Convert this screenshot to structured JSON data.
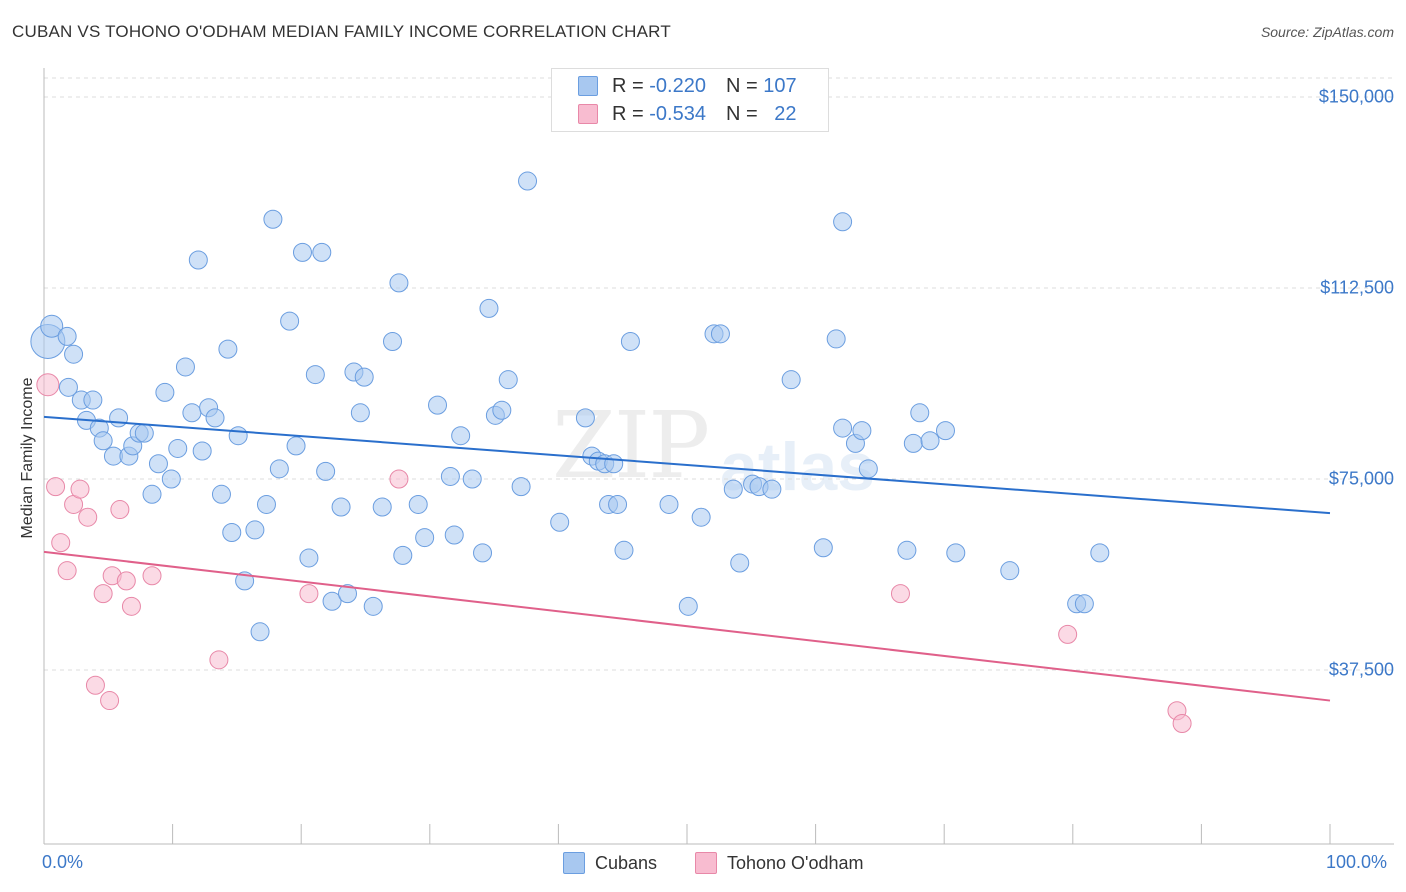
{
  "chart_data": {
    "type": "scatter",
    "title": "CUBAN VS TOHONO O'ODHAM MEDIAN FAMILY INCOME CORRELATION CHART",
    "source": "Source: ZipAtlas.com",
    "xlabel": "",
    "ylabel": "Median Family Income",
    "xlim": [
      0,
      100
    ],
    "ylim": [
      0,
      155000
    ],
    "x_tick_labels": [
      "0.0%",
      "100.0%"
    ],
    "y_ticks": [
      37500,
      75000,
      112500,
      150000
    ],
    "y_tick_labels": [
      "$37,500",
      "$75,000",
      "$112,500",
      "$150,000"
    ],
    "grid": true,
    "watermark": [
      "ZIP",
      "atlas"
    ],
    "legend": [
      {
        "r_label": "R = ",
        "r_value": "-0.220",
        "n_label": "N = ",
        "n_value": "107",
        "color": "#a8c8f0",
        "stroke": "#6b9ee0"
      },
      {
        "r_label": "R = ",
        "r_value": "-0.534",
        "n_label": "N = ",
        "n_value": "22",
        "color": "#f8bcd0",
        "stroke": "#e888a8"
      }
    ],
    "series": [
      {
        "name": "Cubans",
        "color": "#a8c8f0",
        "stroke": "#6b9ee0",
        "trend_color": "#2a6fcc",
        "trend": {
          "x": [
            0,
            100
          ],
          "y": [
            87200,
            68300
          ]
        },
        "points": [
          [
            0.3,
            102000
          ],
          [
            0.6,
            105000
          ],
          [
            1.8,
            103000
          ],
          [
            2.3,
            99500
          ],
          [
            1.9,
            93000
          ],
          [
            2.9,
            90500
          ],
          [
            3.8,
            90500
          ],
          [
            3.3,
            86500
          ],
          [
            4.3,
            85000
          ],
          [
            5.8,
            87000
          ],
          [
            4.6,
            82500
          ],
          [
            5.4,
            79500
          ],
          [
            6.6,
            79500
          ],
          [
            6.9,
            81500
          ],
          [
            7.4,
            84000
          ],
          [
            7.8,
            84000
          ],
          [
            8.4,
            72000
          ],
          [
            8.9,
            78000
          ],
          [
            9.4,
            92000
          ],
          [
            9.9,
            75000
          ],
          [
            10.4,
            81000
          ],
          [
            11.0,
            97000
          ],
          [
            11.5,
            88000
          ],
          [
            12.0,
            118000
          ],
          [
            12.3,
            80500
          ],
          [
            12.8,
            89000
          ],
          [
            13.3,
            87000
          ],
          [
            13.8,
            72000
          ],
          [
            14.3,
            100500
          ],
          [
            14.6,
            64500
          ],
          [
            15.1,
            83500
          ],
          [
            15.6,
            55000
          ],
          [
            16.4,
            65000
          ],
          [
            16.8,
            45000
          ],
          [
            17.3,
            70000
          ],
          [
            17.8,
            126000
          ],
          [
            18.3,
            77000
          ],
          [
            19.1,
            106000
          ],
          [
            19.6,
            81500
          ],
          [
            20.1,
            119500
          ],
          [
            20.6,
            59500
          ],
          [
            21.1,
            95500
          ],
          [
            21.6,
            119500
          ],
          [
            21.9,
            76500
          ],
          [
            22.4,
            51000
          ],
          [
            23.1,
            69500
          ],
          [
            23.6,
            52500
          ],
          [
            24.1,
            96000
          ],
          [
            24.6,
            88000
          ],
          [
            24.9,
            95000
          ],
          [
            25.6,
            50000
          ],
          [
            26.3,
            69500
          ],
          [
            27.1,
            102000
          ],
          [
            27.6,
            113500
          ],
          [
            27.9,
            60000
          ],
          [
            29.1,
            70000
          ],
          [
            29.6,
            63500
          ],
          [
            30.6,
            89500
          ],
          [
            31.6,
            75500
          ],
          [
            31.9,
            64000
          ],
          [
            32.4,
            83500
          ],
          [
            33.3,
            75000
          ],
          [
            34.1,
            60500
          ],
          [
            34.6,
            108500
          ],
          [
            35.1,
            87500
          ],
          [
            35.6,
            88500
          ],
          [
            36.1,
            94500
          ],
          [
            37.1,
            73500
          ],
          [
            37.6,
            133500
          ],
          [
            40.1,
            66500
          ],
          [
            42.1,
            87000
          ],
          [
            42.6,
            79500
          ],
          [
            43.1,
            78500
          ],
          [
            43.6,
            78000
          ],
          [
            43.9,
            70000
          ],
          [
            44.3,
            78000
          ],
          [
            44.6,
            70000
          ],
          [
            45.1,
            61000
          ],
          [
            45.6,
            102000
          ],
          [
            48.6,
            70000
          ],
          [
            50.1,
            50000
          ],
          [
            51.1,
            67500
          ],
          [
            52.1,
            103500
          ],
          [
            52.6,
            103500
          ],
          [
            53.6,
            73000
          ],
          [
            54.1,
            58500
          ],
          [
            55.1,
            74000
          ],
          [
            55.6,
            73500
          ],
          [
            56.6,
            73000
          ],
          [
            58.1,
            94500
          ],
          [
            60.6,
            61500
          ],
          [
            61.6,
            102500
          ],
          [
            62.1,
            125500
          ],
          [
            62.1,
            85000
          ],
          [
            63.1,
            82000
          ],
          [
            63.6,
            84500
          ],
          [
            64.1,
            77000
          ],
          [
            67.1,
            61000
          ],
          [
            67.6,
            82000
          ],
          [
            68.1,
            88000
          ],
          [
            68.9,
            82500
          ],
          [
            70.1,
            84500
          ],
          [
            70.9,
            60500
          ],
          [
            75.1,
            57000
          ],
          [
            80.3,
            50500
          ],
          [
            80.9,
            50500
          ],
          [
            82.1,
            60500
          ]
        ]
      },
      {
        "name": "Tohono O'odham",
        "color": "#f8bcd0",
        "stroke": "#e888a8",
        "trend_color": "#e0608a",
        "trend": {
          "x": [
            0,
            100
          ],
          "y": [
            60700,
            31500
          ]
        },
        "points": [
          [
            0.3,
            93500
          ],
          [
            0.9,
            73500
          ],
          [
            1.3,
            62500
          ],
          [
            1.8,
            57000
          ],
          [
            2.3,
            70000
          ],
          [
            2.8,
            73000
          ],
          [
            3.4,
            67500
          ],
          [
            4.0,
            34500
          ],
          [
            4.6,
            52500
          ],
          [
            5.1,
            31500
          ],
          [
            5.3,
            56000
          ],
          [
            5.9,
            69000
          ],
          [
            6.4,
            55000
          ],
          [
            6.8,
            50000
          ],
          [
            8.4,
            56000
          ],
          [
            13.6,
            39500
          ],
          [
            20.6,
            52500
          ],
          [
            27.6,
            75000
          ],
          [
            66.6,
            52500
          ],
          [
            79.6,
            44500
          ],
          [
            88.1,
            29500
          ],
          [
            88.5,
            27000
          ]
        ]
      }
    ]
  }
}
